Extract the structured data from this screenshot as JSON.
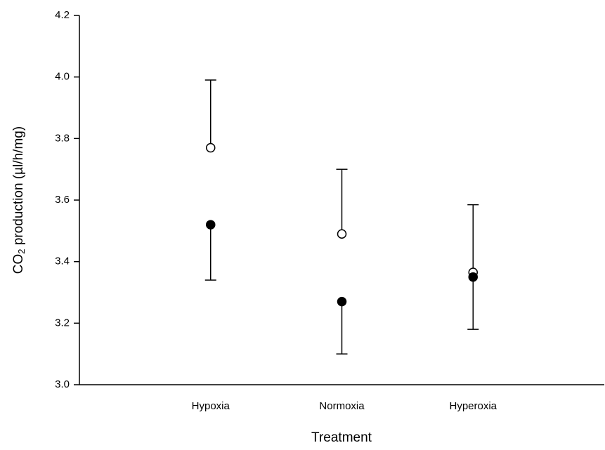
{
  "chart_data": {
    "type": "errorbar",
    "xlabel": "Treatment",
    "ylabel": [
      "CO",
      "2",
      " production (µl/h/mg)"
    ],
    "categories": [
      "Hypoxia",
      "Normoxia",
      "Hyperoxia"
    ],
    "series": [
      {
        "color": "#000000",
        "fill": "#ffffff",
        "error_direction": "up",
        "values": [
          3.77,
          3.49,
          3.365
        ],
        "errors": [
          0.22,
          0.21,
          0.22
        ]
      },
      {
        "color": "#000000",
        "fill": "#000000",
        "error_direction": "down",
        "values": [
          3.52,
          3.27,
          3.35
        ],
        "errors": [
          0.18,
          0.17,
          0.17
        ]
      }
    ],
    "ylim": [
      3.0,
      4.2
    ],
    "yticks": [
      {
        "value": 3,
        "label": "3.0"
      },
      3.2,
      3.4,
      3.6,
      3.8,
      {
        "value": 4,
        "label": "4.0"
      },
      4.2
    ],
    "grid": false
  }
}
